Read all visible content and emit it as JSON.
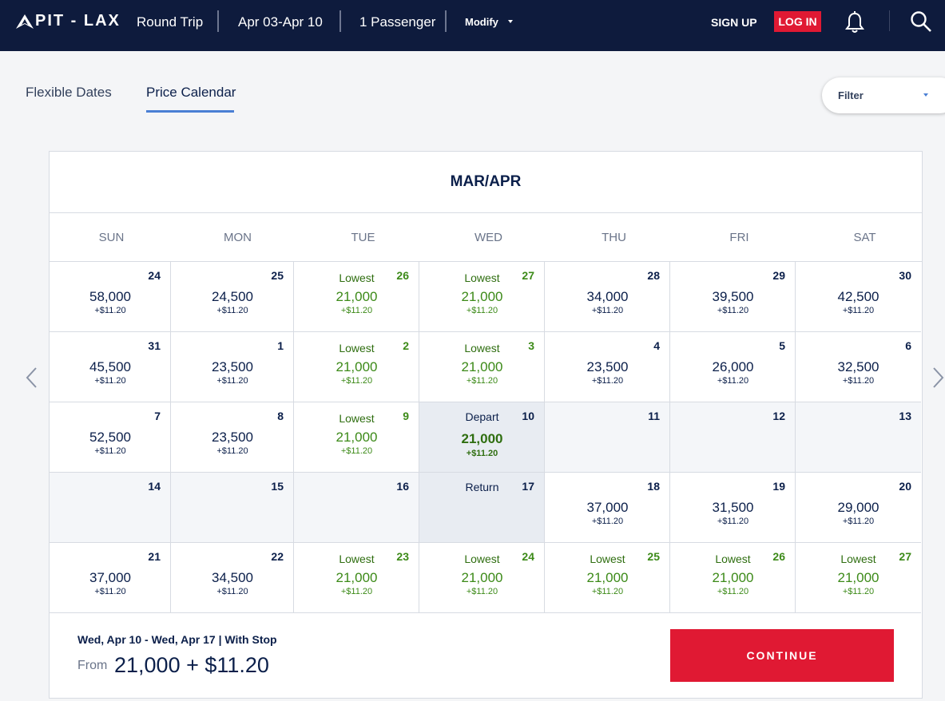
{
  "header": {
    "route": "PIT - LAX",
    "trip_type": "Round Trip",
    "dates": "Apr 03-Apr 10",
    "passengers": "1 Passenger",
    "modify": "Modify",
    "sign_up": "SIGN UP",
    "log_in": "LOG IN"
  },
  "tabs": [
    {
      "label": "Flexible Dates",
      "active": false
    },
    {
      "label": "Price Calendar",
      "active": true
    }
  ],
  "filter": {
    "label": "Filter"
  },
  "calendar": {
    "month_label": "MAR/APR",
    "weekdays": [
      "SUN",
      "MON",
      "TUE",
      "WED",
      "THU",
      "FRI",
      "SAT"
    ],
    "weeks": [
      [
        {
          "day": "24",
          "price": "58,000",
          "fee": "+$11.20"
        },
        {
          "day": "25",
          "price": "24,500",
          "fee": "+$11.20"
        },
        {
          "day": "26",
          "tag": "Lowest",
          "price": "21,000",
          "fee": "+$11.20",
          "lowest": true
        },
        {
          "day": "27",
          "tag": "Lowest",
          "price": "21,000",
          "fee": "+$11.20",
          "lowest": true
        },
        {
          "day": "28",
          "price": "34,000",
          "fee": "+$11.20"
        },
        {
          "day": "29",
          "price": "39,500",
          "fee": "+$11.20"
        },
        {
          "day": "30",
          "price": "42,500",
          "fee": "+$11.20"
        }
      ],
      [
        {
          "day": "31",
          "price": "45,500",
          "fee": "+$11.20"
        },
        {
          "day": "1",
          "price": "23,500",
          "fee": "+$11.20"
        },
        {
          "day": "2",
          "tag": "Lowest",
          "price": "21,000",
          "fee": "+$11.20",
          "lowest": true
        },
        {
          "day": "3",
          "tag": "Lowest",
          "price": "21,000",
          "fee": "+$11.20",
          "lowest": true
        },
        {
          "day": "4",
          "price": "23,500",
          "fee": "+$11.20"
        },
        {
          "day": "5",
          "price": "26,000",
          "fee": "+$11.20"
        },
        {
          "day": "6",
          "price": "32,500",
          "fee": "+$11.20"
        }
      ],
      [
        {
          "day": "7",
          "price": "52,500",
          "fee": "+$11.20"
        },
        {
          "day": "8",
          "price": "23,500",
          "fee": "+$11.20"
        },
        {
          "day": "9",
          "tag": "Lowest",
          "price": "21,000",
          "fee": "+$11.20",
          "lowest": true
        },
        {
          "day": "10",
          "tag": "Depart",
          "price": "21,000",
          "fee": "+$11.20",
          "selected": true
        },
        {
          "day": "11",
          "empty": true
        },
        {
          "day": "12",
          "empty": true
        },
        {
          "day": "13",
          "empty": true
        }
      ],
      [
        {
          "day": "14",
          "empty": true
        },
        {
          "day": "15",
          "empty": true
        },
        {
          "day": "16",
          "empty": true
        },
        {
          "day": "17",
          "tag": "Return",
          "selected": true
        },
        {
          "day": "18",
          "price": "37,000",
          "fee": "+$11.20"
        },
        {
          "day": "19",
          "price": "31,500",
          "fee": "+$11.20"
        },
        {
          "day": "20",
          "price": "29,000",
          "fee": "+$11.20"
        }
      ],
      [
        {
          "day": "21",
          "price": "37,000",
          "fee": "+$11.20"
        },
        {
          "day": "22",
          "price": "34,500",
          "fee": "+$11.20"
        },
        {
          "day": "23",
          "tag": "Lowest",
          "price": "21,000",
          "fee": "+$11.20",
          "lowest": true
        },
        {
          "day": "24",
          "tag": "Lowest",
          "price": "21,000",
          "fee": "+$11.20",
          "lowest": true
        },
        {
          "day": "25",
          "tag": "Lowest",
          "price": "21,000",
          "fee": "+$11.20",
          "lowest": true
        },
        {
          "day": "26",
          "tag": "Lowest",
          "price": "21,000",
          "fee": "+$11.20",
          "lowest": true
        },
        {
          "day": "27",
          "tag": "Lowest",
          "price": "21,000",
          "fee": "+$11.20",
          "lowest": true
        }
      ]
    ]
  },
  "summary": {
    "dates": "Wed, Apr 10 - Wed, Apr 17   |  With Stop",
    "from_label": "From",
    "price": "21,000 + $11.20",
    "continue_label": "CONTINUE"
  },
  "colors": {
    "header_bg": "#0e1b3d",
    "accent_red": "#e01933",
    "lowest_green": "#3c8a18",
    "tab_underline": "#4a7fd4"
  }
}
